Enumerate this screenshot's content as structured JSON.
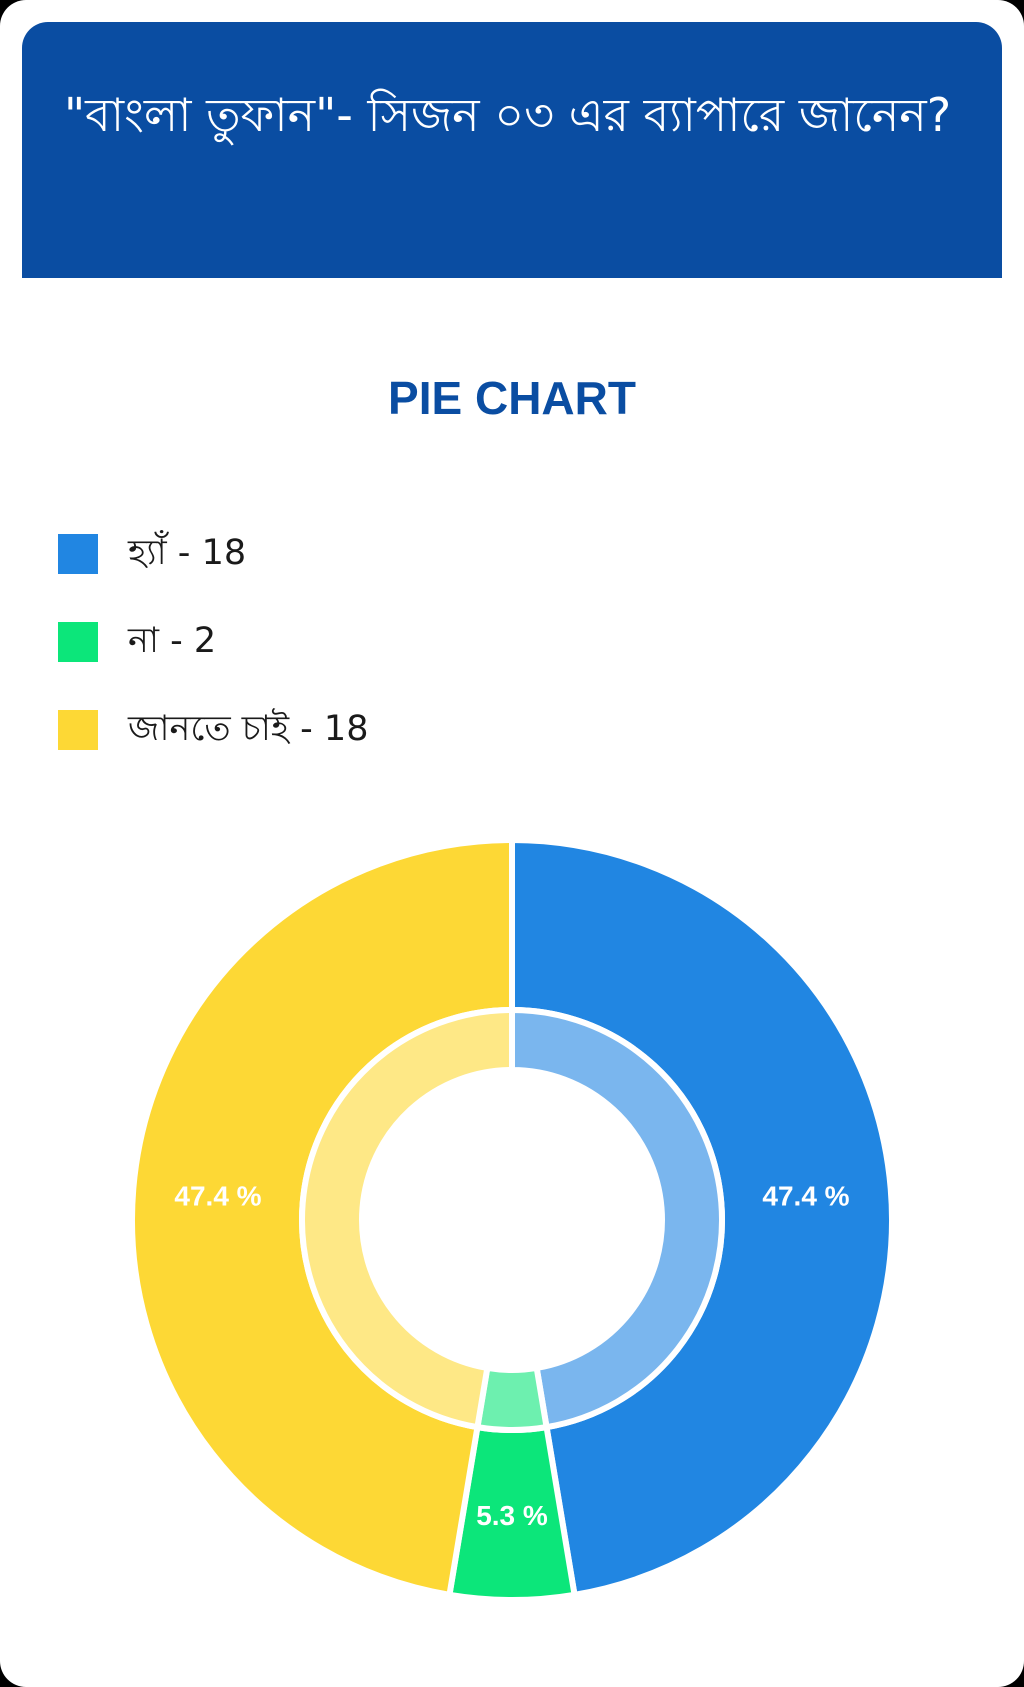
{
  "header": {
    "question": "\"বাংলা তুফান\"- সিজন ০৩ এর ব্যাপারে জানেন?"
  },
  "chart_title": "PIE CHART",
  "chart_data": {
    "type": "pie",
    "style": "donut",
    "title": "PIE CHART",
    "legend_position": "top-left",
    "slices": [
      {
        "label": "হ্যাঁ",
        "value": 18,
        "percent_label": "47.4 %",
        "color": "#2186e2"
      },
      {
        "label": "না",
        "value": 2,
        "percent_label": "5.3 %",
        "color": "#0ce67a"
      },
      {
        "label": "জানতে চাই",
        "value": 18,
        "percent_label": "47.4 %",
        "color": "#fdd835"
      }
    ]
  },
  "legend": {
    "items": [
      {
        "text": "হ্যাঁ - 18",
        "color": "#2186e2"
      },
      {
        "text": "না - 2",
        "color": "#0ce67a"
      },
      {
        "text": "জানতে চাই - 18",
        "color": "#fdd835"
      }
    ]
  }
}
